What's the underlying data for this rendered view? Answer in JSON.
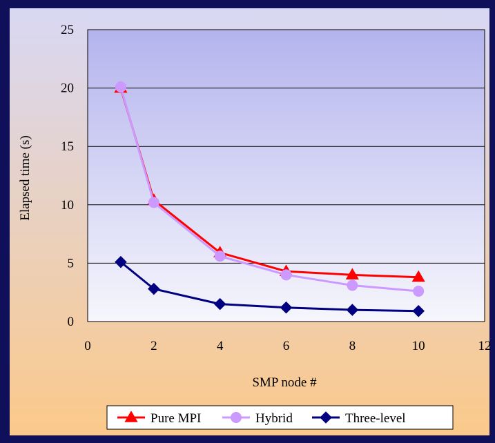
{
  "colors": {
    "frame": "#10105a",
    "background_top": "#d8d8f4",
    "background_bottom": "#fbc98a",
    "plot_top": "#b4b4ee",
    "plot_bottom": "#f6f6fc",
    "gridline": "#000000"
  },
  "chart_data": {
    "type": "line",
    "title": "",
    "xlabel": "SMP node #",
    "ylabel": "Elapsed time (s)",
    "xlim": [
      0,
      12
    ],
    "ylim": [
      0,
      25
    ],
    "x_ticks": [
      "0",
      "2",
      "4",
      "6",
      "8",
      "10",
      "12"
    ],
    "y_ticks": [
      "0",
      "5",
      "10",
      "15",
      "20",
      "25"
    ],
    "grid": "horizontal",
    "legend_position": "bottom",
    "x": [
      1,
      2,
      4,
      6,
      8,
      10
    ],
    "series": [
      {
        "name": "Pure MPI",
        "color": "#ff0000",
        "marker": "triangle",
        "values": [
          20.0,
          10.4,
          5.9,
          4.3,
          4.0,
          3.8
        ]
      },
      {
        "name": "Hybrid",
        "color": "#cc99ff",
        "marker": "circle",
        "values": [
          20.1,
          10.2,
          5.6,
          4.0,
          3.1,
          2.6
        ]
      },
      {
        "name": "Three-level",
        "color": "#000080",
        "marker": "diamond",
        "values": [
          5.1,
          2.8,
          1.5,
          1.2,
          1.0,
          0.9
        ]
      }
    ]
  }
}
